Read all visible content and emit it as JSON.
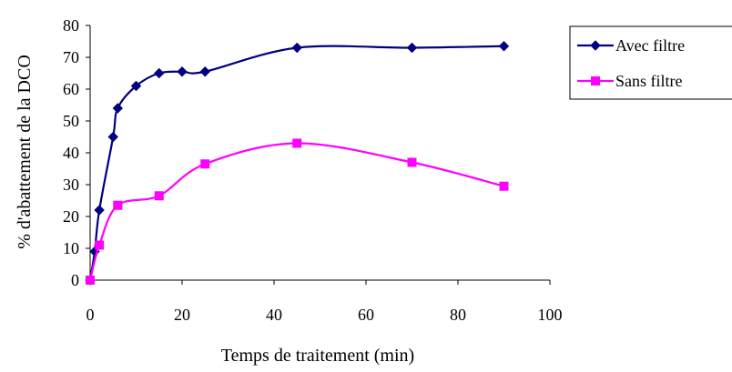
{
  "chart_data": {
    "type": "line",
    "title": "",
    "xlabel": "Temps de traitement (min)",
    "ylabel": "% d'abattement de la DCO",
    "xlim": [
      0,
      100
    ],
    "ylim": [
      0,
      80
    ],
    "xticks": [
      0,
      20,
      40,
      60,
      80,
      100
    ],
    "yticks": [
      0,
      10,
      20,
      30,
      40,
      50,
      60,
      70,
      80
    ],
    "grid": false,
    "legend_position": "right",
    "series": [
      {
        "name": "Avec filtre",
        "color": "#000080",
        "marker": "diamond",
        "smooth": true,
        "points": [
          [
            0,
            0
          ],
          [
            1,
            9
          ],
          [
            2,
            22
          ],
          [
            5,
            45
          ],
          [
            6,
            54
          ],
          [
            10,
            61
          ],
          [
            15,
            65
          ],
          [
            20,
            65.5
          ],
          [
            25,
            65.5
          ],
          [
            45,
            73
          ],
          [
            70,
            73
          ],
          [
            90,
            73.5
          ]
        ]
      },
      {
        "name": "Sans filtre",
        "color": "#ff00ff",
        "marker": "square",
        "smooth": true,
        "points": [
          [
            0,
            0
          ],
          [
            2,
            11
          ],
          [
            6,
            23.5
          ],
          [
            15,
            26.5
          ],
          [
            25,
            36.5
          ],
          [
            45,
            43
          ],
          [
            70,
            37
          ],
          [
            90,
            29.5
          ]
        ]
      }
    ]
  }
}
